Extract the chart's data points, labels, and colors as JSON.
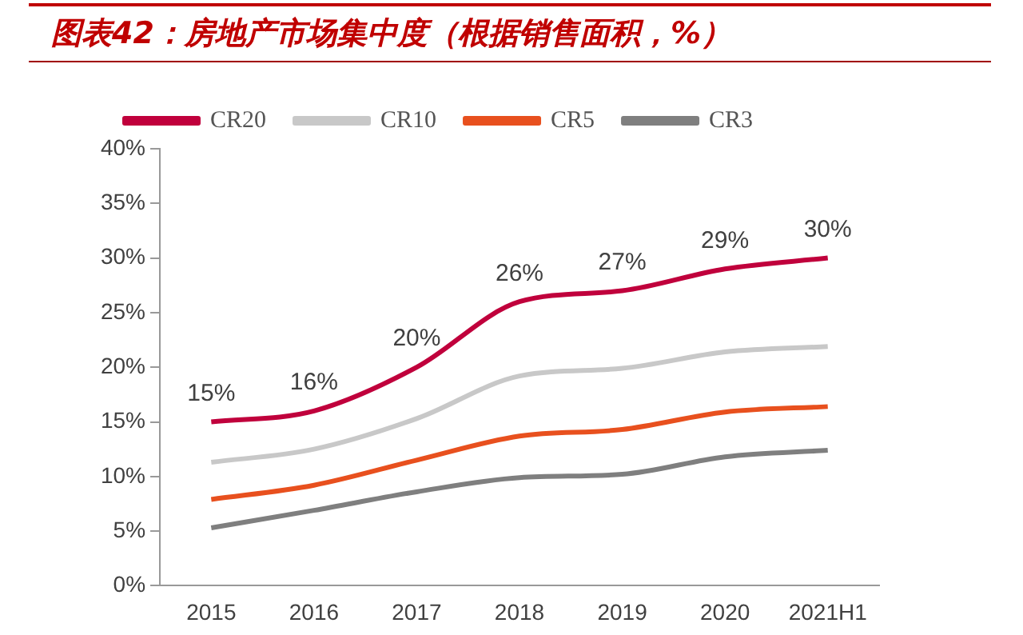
{
  "chart_data": {
    "type": "line",
    "title": "图表42：房地产市场集中度（根据销售面积，%）",
    "categories": [
      "2015",
      "2016",
      "2017",
      "2018",
      "2019",
      "2020",
      "2021H1"
    ],
    "series": [
      {
        "name": "CR20",
        "color": "#c0003c",
        "values": [
          15,
          16,
          20,
          26,
          27,
          29,
          30
        ],
        "value_labels": [
          "15%",
          "16%",
          "20%",
          "26%",
          "27%",
          "29%",
          "30%"
        ]
      },
      {
        "name": "CR10",
        "color": "#c8c8c8",
        "values": [
          11.3,
          12.5,
          15.3,
          19.2,
          19.9,
          21.4,
          21.9
        ]
      },
      {
        "name": "CR5",
        "color": "#e8501e",
        "values": [
          7.9,
          9.2,
          11.5,
          13.7,
          14.3,
          15.9,
          16.4
        ]
      },
      {
        "name": "CR3",
        "color": "#7f7f7f",
        "values": [
          5.3,
          6.9,
          8.6,
          9.9,
          10.2,
          11.8,
          12.4
        ]
      }
    ],
    "ylim": [
      0,
      40
    ],
    "yticks": [
      {
        "value": 0,
        "label": "0%"
      },
      {
        "value": 5,
        "label": "5%"
      },
      {
        "value": 10,
        "label": "10%"
      },
      {
        "value": 15,
        "label": "15%"
      },
      {
        "value": 20,
        "label": "20%"
      },
      {
        "value": 25,
        "label": "25%"
      },
      {
        "value": 30,
        "label": "30%"
      },
      {
        "value": 35,
        "label": "35%"
      },
      {
        "value": 40,
        "label": "40%"
      }
    ],
    "grid": false,
    "legend": "top",
    "marker": "none",
    "line_style": "solid"
  }
}
